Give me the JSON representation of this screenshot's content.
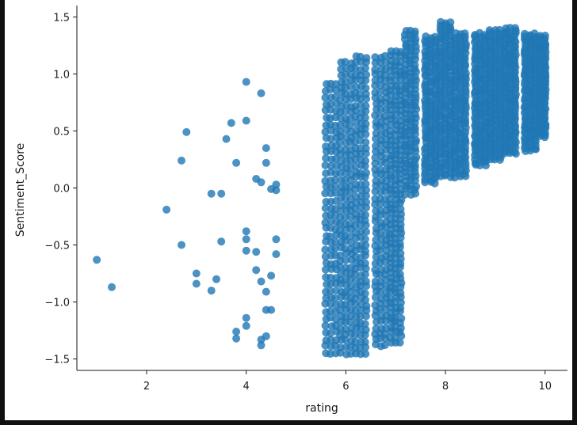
{
  "chart_data": {
    "type": "scatter",
    "title": "",
    "xlabel": "rating",
    "ylabel": "Sentiment_Score",
    "xlim": [
      0.6,
      10.45
    ],
    "ylim": [
      -1.6,
      1.6
    ],
    "x_ticks": [
      2,
      4,
      6,
      8,
      10
    ],
    "x_tick_labels": [
      "2",
      "4",
      "6",
      "8",
      "10"
    ],
    "y_ticks": [
      -1.5,
      -1.0,
      -0.5,
      0.0,
      0.5,
      1.0,
      1.5
    ],
    "y_tick_labels": [
      "−1.5",
      "−1.0",
      "−0.5",
      "0.0",
      "0.5",
      "1.0",
      "1.5"
    ],
    "grid": false,
    "point_color": "#1f77b4",
    "points": [
      [
        1.0,
        -0.63
      ],
      [
        1.3,
        -0.87
      ],
      [
        2.4,
        -0.19
      ],
      [
        2.7,
        0.24
      ],
      [
        2.7,
        -0.5
      ],
      [
        2.8,
        0.49
      ],
      [
        3.0,
        -0.75
      ],
      [
        3.0,
        -0.84
      ],
      [
        3.3,
        -0.05
      ],
      [
        3.3,
        -0.9
      ],
      [
        3.4,
        -0.8
      ],
      [
        3.5,
        -0.05
      ],
      [
        3.5,
        -0.47
      ],
      [
        3.6,
        0.43
      ],
      [
        3.7,
        0.57
      ],
      [
        3.8,
        0.22
      ],
      [
        3.8,
        -1.26
      ],
      [
        3.8,
        -1.32
      ],
      [
        4.0,
        0.93
      ],
      [
        4.0,
        0.59
      ],
      [
        4.0,
        -0.38
      ],
      [
        4.0,
        -0.45
      ],
      [
        4.0,
        -0.55
      ],
      [
        4.0,
        -1.14
      ],
      [
        4.0,
        -1.21
      ],
      [
        4.2,
        0.08
      ],
      [
        4.2,
        -0.56
      ],
      [
        4.2,
        -0.72
      ],
      [
        4.3,
        0.83
      ],
      [
        4.3,
        0.05
      ],
      [
        4.3,
        -0.82
      ],
      [
        4.3,
        -1.33
      ],
      [
        4.3,
        -1.38
      ],
      [
        4.4,
        0.35
      ],
      [
        4.4,
        0.22
      ],
      [
        4.4,
        -0.91
      ],
      [
        4.4,
        -1.07
      ],
      [
        4.4,
        -1.3
      ],
      [
        4.5,
        -0.01
      ],
      [
        4.5,
        -0.77
      ],
      [
        4.5,
        -1.07
      ],
      [
        4.6,
        0.03
      ],
      [
        4.6,
        -0.02
      ],
      [
        4.6,
        -0.45
      ],
      [
        4.6,
        -0.58
      ]
    ],
    "dense_columns": [
      {
        "x": 5.7,
        "ymin": -1.45,
        "ymax": 0.92,
        "n": 40
      },
      {
        "x": 6.0,
        "ymin": -1.45,
        "ymax": 1.1,
        "n": 48
      },
      {
        "x": 6.3,
        "ymin": -1.45,
        "ymax": 1.15,
        "n": 50
      },
      {
        "x": 6.7,
        "ymin": -1.38,
        "ymax": 1.15,
        "n": 50
      },
      {
        "x": 7.0,
        "ymin": -1.35,
        "ymax": 1.2,
        "n": 60
      },
      {
        "x": 7.3,
        "ymin": -0.05,
        "ymax": 1.38,
        "n": 40
      },
      {
        "x": 7.7,
        "ymin": 0.05,
        "ymax": 1.32,
        "n": 45
      },
      {
        "x": 8.0,
        "ymin": 0.1,
        "ymax": 1.45,
        "n": 45
      },
      {
        "x": 8.3,
        "ymin": 0.1,
        "ymax": 1.35,
        "n": 45
      },
      {
        "x": 8.7,
        "ymin": 0.2,
        "ymax": 1.35,
        "n": 45
      },
      {
        "x": 9.0,
        "ymin": 0.25,
        "ymax": 1.38,
        "n": 45
      },
      {
        "x": 9.3,
        "ymin": 0.3,
        "ymax": 1.4,
        "n": 45
      },
      {
        "x": 9.7,
        "ymin": 0.33,
        "ymax": 1.35,
        "n": 45
      },
      {
        "x": 10.0,
        "ymin": 0.45,
        "ymax": 1.33,
        "n": 45
      }
    ]
  }
}
